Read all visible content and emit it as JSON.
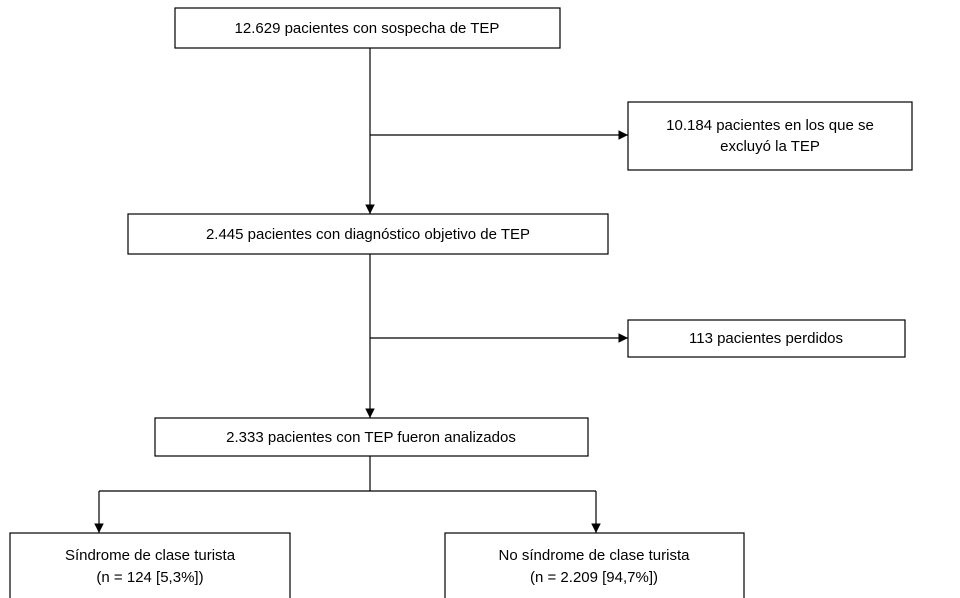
{
  "nodes": [
    {
      "lines": [
        "12.629 pacientes con sospecha de TEP"
      ]
    },
    {
      "lines": [
        "10.184 pacientes en los que se",
        "excluyó la TEP"
      ]
    },
    {
      "lines": [
        "2.445 pacientes con diagnóstico objetivo de TEP"
      ]
    },
    {
      "lines": [
        "113 pacientes perdidos"
      ]
    },
    {
      "lines": [
        "2.333 pacientes con TEP fueron analizados"
      ]
    },
    {
      "lines": [
        "Síndrome de clase turista",
        "(n = 124 [5,3%])"
      ]
    },
    {
      "lines": [
        "No síndrome de clase turista",
        "(n = 2.209 [94,7%])"
      ]
    }
  ]
}
